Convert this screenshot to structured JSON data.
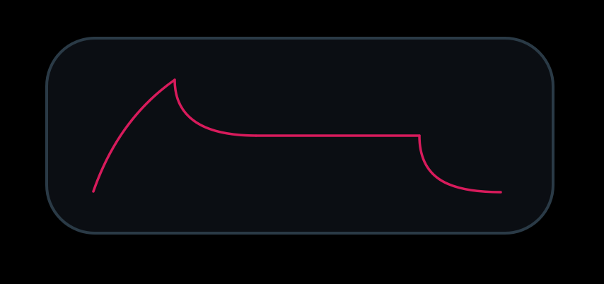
{
  "envelope": {
    "type": "ADSR",
    "curve_color": "#d81b5c",
    "panel_background": "#0b0e13",
    "panel_border_color": "#2a3a46",
    "page_background": "#000000",
    "stages": [
      "attack",
      "decay",
      "sustain",
      "release"
    ]
  }
}
